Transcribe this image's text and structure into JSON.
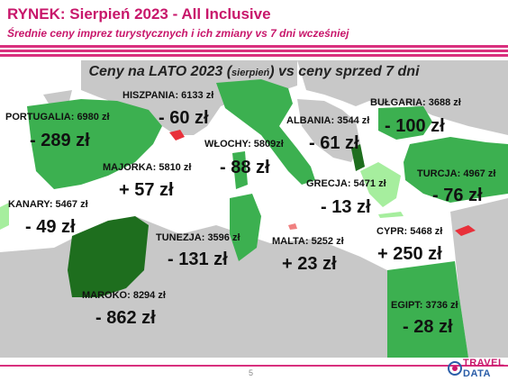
{
  "header": {
    "title": "RYNEK: Sierpień 2023 - All Inclusive",
    "subtitle": "Średnie ceny imprez turystycznych i ich zmiany vs 7 dni wcześniej"
  },
  "map": {
    "title_part1": "Ceny na LATO 2023 (",
    "title_small": "sierpień",
    "title_part2": ") vs ceny sprzed 7 dni",
    "colors": {
      "water": "#ffffff",
      "land_gray": "#c8c8c8",
      "increase_red": "#e8303a",
      "green_mid": "#3cb050",
      "green_light": "#7ee07e",
      "green_dark": "#1e6e1e",
      "green_pale": "#a6ee9e"
    },
    "destinations": [
      {
        "label": "PORTUGALIA: 6980 zł",
        "change": "- 289 zł"
      },
      {
        "label": "HISZPANIA: 6133 zł",
        "change": "- 60 zł"
      },
      {
        "label": "WŁOCHY: 5809zł",
        "change": "- 88 zł"
      },
      {
        "label": "ALBANIA: 3544 zł",
        "change": "- 61 zł"
      },
      {
        "label": "BUŁGARIA: 3688 zł",
        "change": "- 100 zł"
      },
      {
        "label": "MAJORKA: 5810 zł",
        "change": "+ 57 zł"
      },
      {
        "label": "TURCJA: 4967 zł",
        "change": "- 76 zł"
      },
      {
        "label": "GRECJA: 5471 zł",
        "change": "- 13 zł"
      },
      {
        "label": "KANARY: 5467 zł",
        "change": "- 49 zł"
      },
      {
        "label": "TUNEZJA: 3596 zł",
        "change": "- 131 zł"
      },
      {
        "label": "MALTA: 5252 zł",
        "change": "+ 23 zł"
      },
      {
        "label": "CYPR: 5468 zł",
        "change": "+ 250 zł"
      },
      {
        "label": "MAROKO: 8294 zł",
        "change": "- 862 zł"
      },
      {
        "label": "EGIPT: 3736 zł",
        "change": "- 28 zł"
      }
    ]
  },
  "footer": {
    "page_number": "5",
    "logo_line1": "TRAVEL",
    "logo_line2": "DATA"
  }
}
